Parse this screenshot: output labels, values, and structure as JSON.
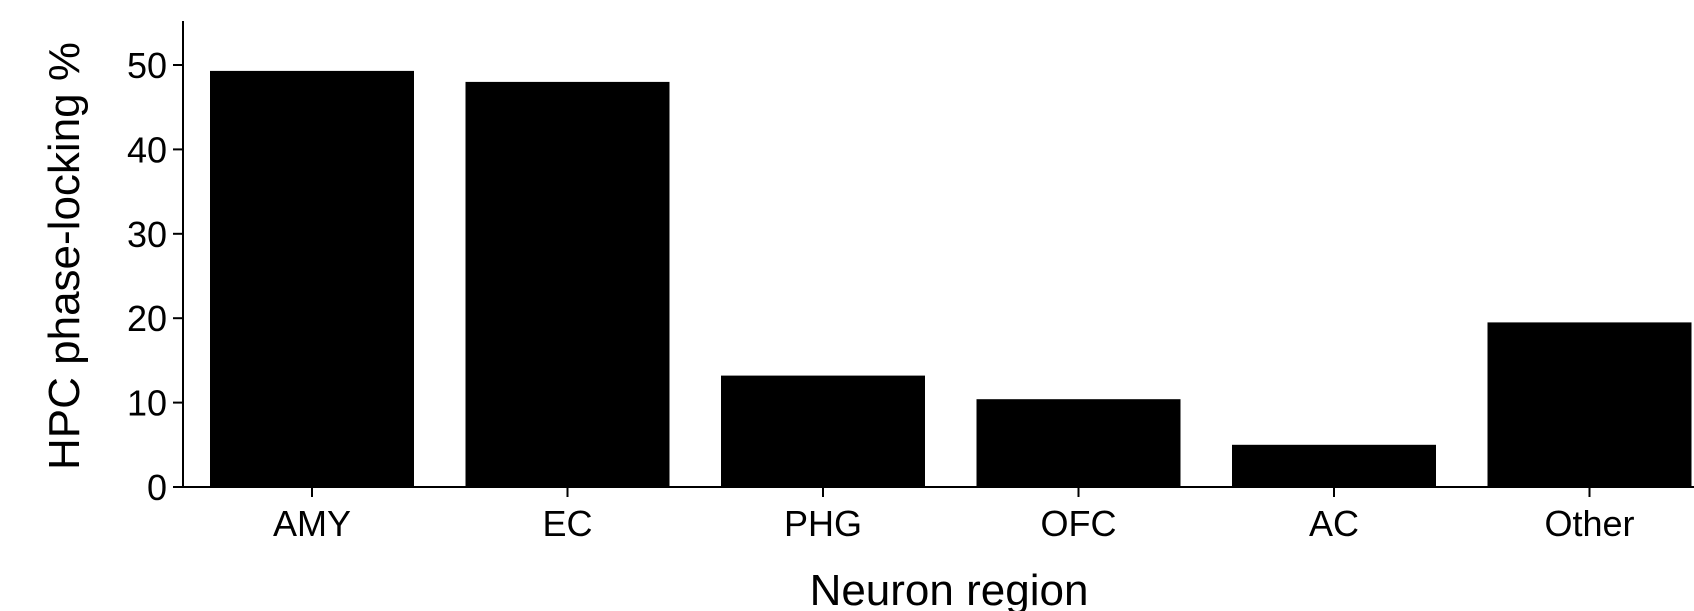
{
  "chart_data": {
    "type": "bar",
    "title": "",
    "xlabel": "Neuron region",
    "ylabel": "HPC phase-locking %",
    "categories": [
      "AMY",
      "EC",
      "PHG",
      "OFC",
      "AC",
      "Other"
    ],
    "values": [
      49.3,
      48.0,
      13.2,
      10.4,
      5.0,
      19.5
    ],
    "ylim": [
      0,
      55
    ],
    "yticks": [
      0,
      10,
      20,
      30,
      40,
      50
    ],
    "grid": false,
    "legend": "none",
    "colors": {
      "bar": "#000000",
      "axis": "#000000"
    }
  }
}
